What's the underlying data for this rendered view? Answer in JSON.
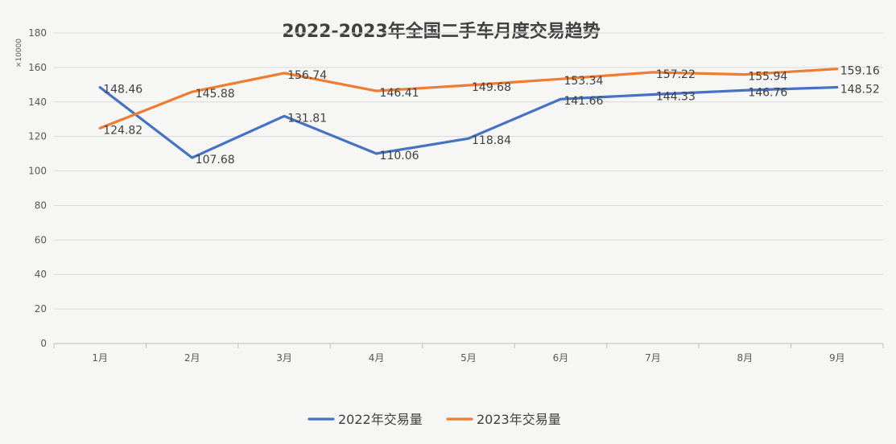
{
  "chart_data": {
    "type": "line",
    "title": "2022-2023年全国二手车月度交易趋势",
    "unit_label": "×10000",
    "categories": [
      "1月",
      "2月",
      "3月",
      "4月",
      "5月",
      "6月",
      "7月",
      "8月",
      "9月"
    ],
    "y_ticks": [
      0,
      20,
      40,
      60,
      80,
      100,
      120,
      140,
      160,
      180
    ],
    "ylim": [
      0,
      180
    ],
    "grid": true,
    "legend_position": "bottom",
    "series": [
      {
        "name": "2022年交易量",
        "color": "#4472c4",
        "values": [
          148.46,
          107.68,
          131.81,
          110.06,
          118.84,
          141.66,
          144.33,
          146.76,
          148.52
        ],
        "labels": [
          "148.46",
          "107.68",
          "131.81",
          "110.06",
          "118.84",
          "141.66",
          "144.33",
          "146.76",
          "148.52"
        ]
      },
      {
        "name": "2023年交易量",
        "color": "#ed7d31",
        "values": [
          124.82,
          145.88,
          156.74,
          146.41,
          149.68,
          153.34,
          157.22,
          155.94,
          159.16
        ],
        "labels": [
          "124.82",
          "145.88",
          "156.74",
          "146.41",
          "149.68",
          "153.34",
          "157.22",
          "155.94",
          "159.16"
        ]
      }
    ]
  }
}
